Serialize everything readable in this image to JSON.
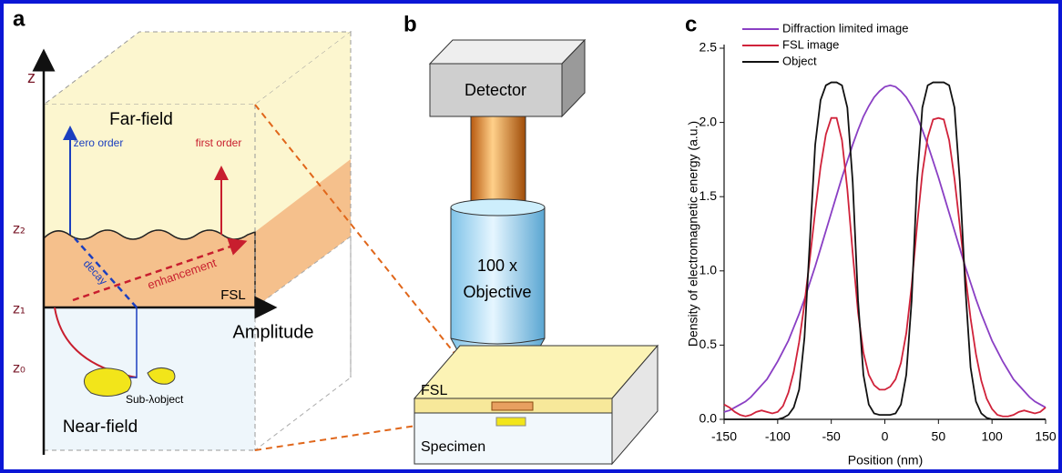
{
  "panel_a": {
    "label": "a",
    "z_axis": "z",
    "far_field": "Far-field",
    "zero_order": "zero order",
    "first_order": "first order",
    "z2": "z₂",
    "decay": "decay",
    "enhancement": "enhancement",
    "fsl": "FSL",
    "z1": "z₁",
    "amplitude": "Amplitude",
    "z0": "z₀",
    "sub_lambda_object": "Sub-λobject",
    "near_field": "Near-field"
  },
  "panel_b": {
    "label": "b",
    "detector": "Detector",
    "objective_lines": [
      "100 x",
      "Objective"
    ],
    "fsl": "FSL",
    "specimen": "Specimen"
  },
  "chart_data": {
    "type": "line",
    "panel_label": "c",
    "xlabel": "Position (nm)",
    "ylabel": "Density of electromagnetic energy (a.u.)",
    "x": [
      -150,
      -145,
      -140,
      -135,
      -130,
      -125,
      -120,
      -115,
      -110,
      -105,
      -100,
      -95,
      -90,
      -85,
      -80,
      -75,
      -70,
      -65,
      -60,
      -55,
      -50,
      -45,
      -40,
      -35,
      -30,
      -25,
      -20,
      -15,
      -10,
      -5,
      0,
      5,
      10,
      15,
      20,
      25,
      30,
      35,
      40,
      45,
      50,
      55,
      60,
      65,
      70,
      75,
      80,
      85,
      90,
      95,
      100,
      105,
      110,
      115,
      120,
      125,
      130,
      135,
      140,
      145,
      150
    ],
    "series": [
      {
        "name": "Diffraction limited image",
        "color": "#8a3fc4",
        "values": [
          0.05,
          0.06,
          0.08,
          0.1,
          0.12,
          0.15,
          0.19,
          0.23,
          0.27,
          0.33,
          0.39,
          0.46,
          0.53,
          0.62,
          0.71,
          0.81,
          0.92,
          1.03,
          1.15,
          1.27,
          1.39,
          1.51,
          1.63,
          1.74,
          1.85,
          1.95,
          2.04,
          2.11,
          2.17,
          2.21,
          2.24,
          2.25,
          2.24,
          2.21,
          2.17,
          2.11,
          2.04,
          1.95,
          1.85,
          1.74,
          1.63,
          1.51,
          1.39,
          1.27,
          1.15,
          1.03,
          0.92,
          0.81,
          0.71,
          0.62,
          0.53,
          0.46,
          0.39,
          0.33,
          0.27,
          0.23,
          0.19,
          0.15,
          0.12,
          0.1,
          0.08
        ]
      },
      {
        "name": "FSL image",
        "color": "#d0223a",
        "values": [
          0.1,
          0.08,
          0.05,
          0.03,
          0.02,
          0.03,
          0.05,
          0.06,
          0.05,
          0.04,
          0.05,
          0.09,
          0.18,
          0.32,
          0.52,
          0.78,
          1.08,
          1.4,
          1.7,
          1.92,
          2.03,
          2.03,
          1.88,
          1.55,
          1.12,
          0.72,
          0.45,
          0.3,
          0.23,
          0.2,
          0.2,
          0.22,
          0.27,
          0.38,
          0.58,
          0.9,
          1.3,
          1.66,
          1.9,
          2.02,
          2.03,
          2.02,
          1.88,
          1.62,
          1.3,
          0.98,
          0.68,
          0.44,
          0.26,
          0.14,
          0.07,
          0.03,
          0.02,
          0.02,
          0.03,
          0.05,
          0.06,
          0.05,
          0.04,
          0.05,
          0.08
        ]
      },
      {
        "name": "Object",
        "color": "#111111",
        "values": [
          0.0,
          0.0,
          0.0,
          0.0,
          0.0,
          0.0,
          0.0,
          0.0,
          0.0,
          0.0,
          0.0,
          0.01,
          0.03,
          0.08,
          0.2,
          0.55,
          1.2,
          1.85,
          2.15,
          2.25,
          2.27,
          2.27,
          2.25,
          2.1,
          1.6,
          0.8,
          0.3,
          0.1,
          0.04,
          0.03,
          0.03,
          0.03,
          0.04,
          0.1,
          0.3,
          0.8,
          1.6,
          2.1,
          2.25,
          2.27,
          2.27,
          2.27,
          2.25,
          2.1,
          1.6,
          0.9,
          0.35,
          0.12,
          0.04,
          0.01,
          0.0,
          0.0,
          0.0,
          0.0,
          0.0,
          0.0,
          0.0,
          0.0,
          0.0,
          0.0,
          0.0
        ]
      }
    ],
    "xlim": [
      -150,
      150
    ],
    "ylim": [
      0,
      2.5
    ],
    "xticks": [
      -150,
      -100,
      -50,
      0,
      50,
      100,
      150
    ],
    "yticks": [
      {
        "value": 0,
        "label": "0.0"
      },
      0.5,
      {
        "value": 1,
        "label": "1.0"
      },
      1.5,
      {
        "value": 2,
        "label": "2.0"
      },
      2.5
    ],
    "legend": "upper left"
  }
}
